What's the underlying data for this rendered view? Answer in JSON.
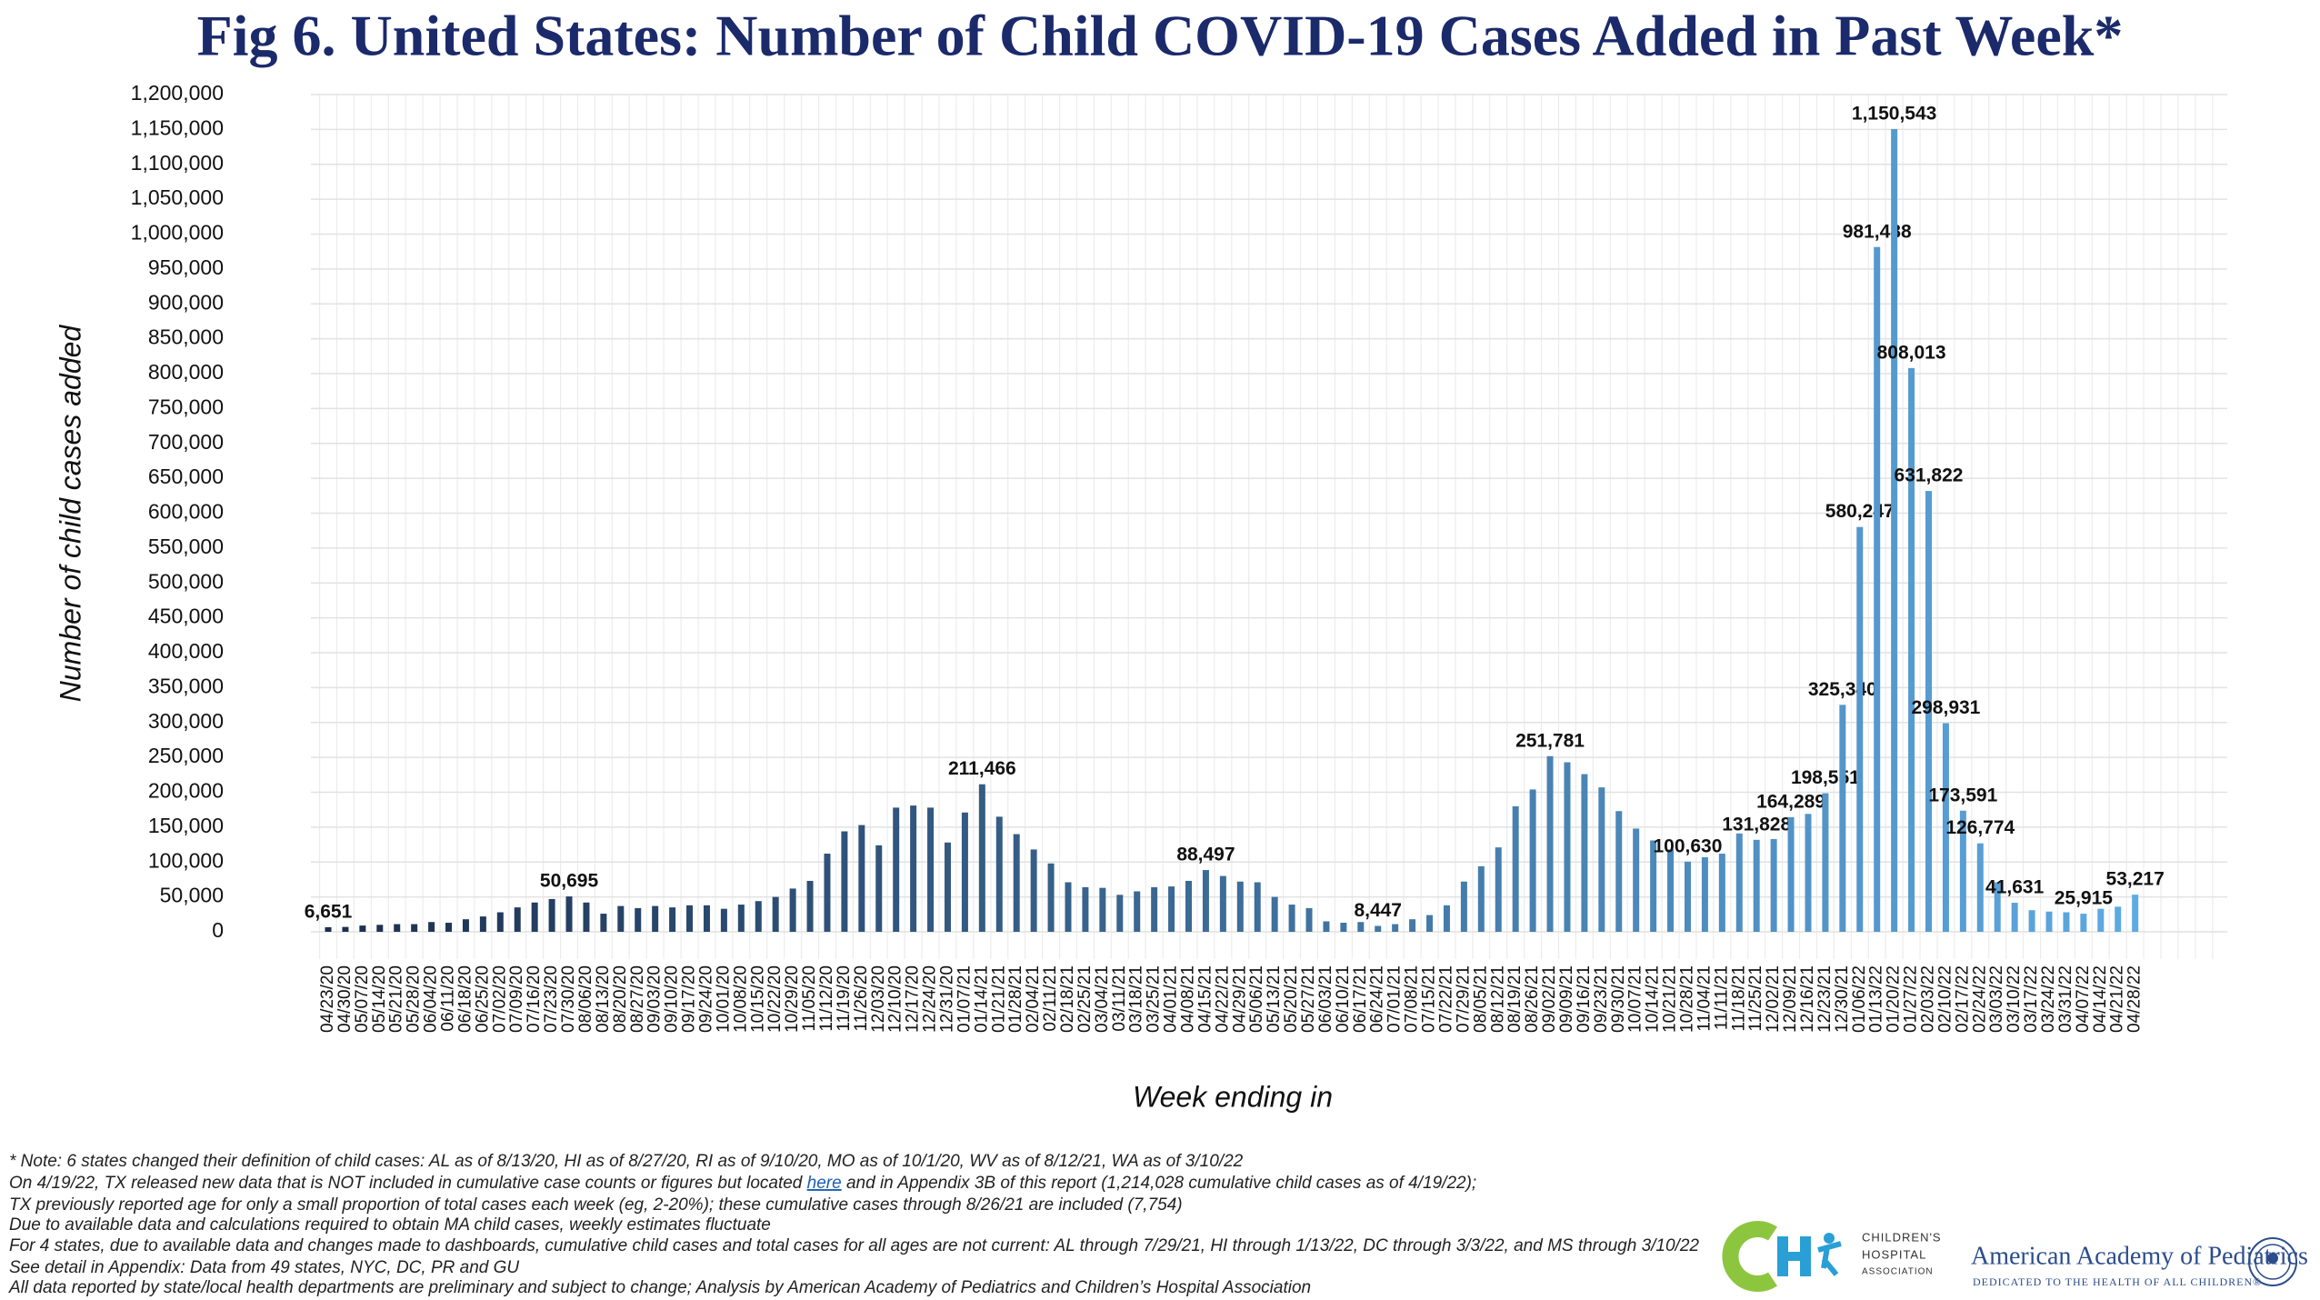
{
  "chart_data": {
    "type": "bar",
    "title": "Fig 6. United States: Number of Child COVID-19 Cases Added in Past Week*",
    "x_label": "Week ending in",
    "y_label": "Number of child cases added",
    "categories": [
      "04/23/20",
      "04/30/20",
      "05/07/20",
      "05/14/20",
      "05/21/20",
      "05/28/20",
      "06/04/20",
      "06/11/20",
      "06/18/20",
      "06/25/20",
      "07/02/20",
      "07/09/20",
      "07/16/20",
      "07/23/20",
      "07/30/20",
      "08/06/20",
      "08/13/20",
      "08/20/20",
      "08/27/20",
      "09/03/20",
      "09/10/20",
      "09/17/20",
      "09/24/20",
      "10/01/20",
      "10/08/20",
      "10/15/20",
      "10/22/20",
      "10/29/20",
      "11/05/20",
      "11/12/20",
      "11/19/20",
      "11/26/20",
      "12/03/20",
      "12/10/20",
      "12/17/20",
      "12/24/20",
      "12/31/20",
      "01/07/21",
      "01/14/21",
      "01/21/21",
      "01/28/21",
      "02/04/21",
      "02/11/21",
      "02/18/21",
      "02/25/21",
      "03/04/21",
      "03/11/21",
      "03/18/21",
      "03/25/21",
      "04/01/21",
      "04/08/21",
      "04/15/21",
      "04/22/21",
      "04/29/21",
      "05/06/21",
      "05/13/21",
      "05/20/21",
      "05/27/21",
      "06/03/21",
      "06/10/21",
      "06/17/21",
      "06/24/21",
      "07/01/21",
      "07/08/21",
      "07/15/21",
      "07/22/21",
      "07/29/21",
      "08/05/21",
      "08/12/21",
      "08/19/21",
      "08/26/21",
      "09/02/21",
      "09/09/21",
      "09/16/21",
      "09/23/21",
      "09/30/21",
      "10/07/21",
      "10/14/21",
      "10/21/21",
      "10/28/21",
      "11/04/21",
      "11/11/21",
      "11/18/21",
      "11/25/21",
      "12/02/21",
      "12/09/21",
      "12/16/21",
      "12/23/21",
      "12/30/21",
      "01/06/22",
      "01/13/22",
      "01/20/22",
      "01/27/22",
      "02/03/22",
      "02/10/22",
      "02/17/22",
      "02/24/22",
      "03/03/22",
      "03/10/22",
      "03/17/22",
      "03/24/22",
      "03/31/22",
      "04/07/22",
      "04/14/22",
      "04/21/22",
      "04/28/22"
    ],
    "values": [
      6651,
      7000,
      9000,
      10000,
      11000,
      11000,
      14000,
      13000,
      18000,
      22000,
      28000,
      35000,
      42000,
      47000,
      50695,
      42000,
      26000,
      37000,
      34000,
      37000,
      35000,
      38000,
      38000,
      33000,
      39000,
      44000,
      50000,
      62000,
      73000,
      112000,
      144000,
      153000,
      124000,
      178000,
      181000,
      178000,
      128000,
      171000,
      211466,
      165000,
      140000,
      118000,
      98000,
      71000,
      64000,
      63000,
      53000,
      58000,
      64000,
      65000,
      73000,
      88497,
      80000,
      72000,
      71000,
      50000,
      39000,
      34000,
      15000,
      13000,
      14000,
      8447,
      11000,
      18000,
      24000,
      38000,
      72000,
      94000,
      121000,
      180000,
      204000,
      251781,
      243000,
      226000,
      207000,
      173000,
      148000,
      131000,
      118000,
      100630,
      107000,
      112000,
      141000,
      131828,
      133000,
      164289,
      169000,
      198551,
      325340,
      580247,
      981488,
      1150543,
      808013,
      631822,
      298931,
      173591,
      126774,
      71000,
      41631,
      31000,
      29000,
      28000,
      25915,
      33000,
      36000,
      53217
    ],
    "value_labels": [
      "6,651",
      null,
      null,
      null,
      null,
      null,
      null,
      null,
      null,
      null,
      null,
      null,
      null,
      null,
      "50,695",
      null,
      null,
      null,
      null,
      null,
      null,
      null,
      null,
      null,
      null,
      null,
      null,
      null,
      null,
      null,
      null,
      null,
      null,
      null,
      null,
      null,
      null,
      null,
      "211,466",
      null,
      null,
      null,
      null,
      null,
      null,
      null,
      null,
      null,
      null,
      null,
      null,
      "88,497",
      null,
      null,
      null,
      null,
      null,
      null,
      null,
      null,
      null,
      "8,447",
      null,
      null,
      null,
      null,
      null,
      null,
      null,
      null,
      null,
      "251,781",
      null,
      null,
      null,
      null,
      null,
      null,
      null,
      "100,630",
      null,
      null,
      null,
      "131,828",
      null,
      "164,289",
      null,
      "198,551",
      "325,340",
      "580,247",
      "981,488",
      "1,150,543",
      "808,013",
      "631,822",
      "298,931",
      "173,591",
      "126,774",
      null,
      "41,631",
      null,
      null,
      null,
      "25,915",
      null,
      null,
      "53,217"
    ],
    "color_gradient": [
      "#1c2f4f",
      "#5eaae2"
    ],
    "ylim": [
      0,
      1200000
    ],
    "yticks": [
      0,
      {
        "value": 50000,
        "label": "50,000"
      },
      {
        "value": 100000,
        "label": "100,000"
      },
      {
        "value": 150000,
        "label": "150,000"
      },
      {
        "value": 200000,
        "label": "200,000"
      },
      {
        "value": 250000,
        "label": "250,000"
      },
      {
        "value": 300000,
        "label": "300,000"
      },
      {
        "value": 350000,
        "label": "350,000"
      },
      {
        "value": 400000,
        "label": "400,000"
      },
      {
        "value": 450000,
        "label": "450,000"
      },
      {
        "value": 500000,
        "label": "500,000"
      },
      {
        "value": 550000,
        "label": "550,000"
      },
      {
        "value": 600000,
        "label": "600,000"
      },
      {
        "value": 650000,
        "label": "650,000"
      },
      {
        "value": 700000,
        "label": "700,000"
      },
      {
        "value": 750000,
        "label": "750,000"
      },
      {
        "value": 800000,
        "label": "800,000"
      },
      {
        "value": 850000,
        "label": "850,000"
      },
      {
        "value": 900000,
        "label": "900,000"
      },
      {
        "value": 950000,
        "label": "950,000"
      },
      {
        "value": 1000000,
        "label": "1,000,000"
      },
      {
        "value": 1050000,
        "label": "1,050,000"
      },
      {
        "value": 1100000,
        "label": "1,100,000"
      },
      {
        "value": 1150000,
        "label": "1,150,000"
      },
      {
        "value": 1200000,
        "label": "1,200,000"
      }
    ],
    "grid": true
  },
  "notes": [
    "* Note: 6 states changed their definition of child cases: AL as of 8/13/20, HI as of 8/27/20, RI as of 9/10/20, MO as of 10/1/20, WV as of 8/12/21, WA as of 3/10/22",
    [
      "On 4/19/22, TX released new data that is NOT included in cumulative case counts or figures but located ",
      "here",
      " and in Appendix 3B of this report (1,214,028 cumulative child cases as of 4/19/22);"
    ],
    "TX previously reported age for only a small proportion of total cases each week (eg, 2-20%); these cumulative cases through 8/26/21 are included (7,754)",
    "Due to available data and calculations required to obtain MA child cases, weekly estimates fluctuate",
    "For 4 states, due to available data and changes made to dashboards, cumulative child cases and total cases for all ages are not current: AL through 7/29/21, HI through 1/13/22, DC through 3/3/22, and MS through 3/10/22",
    "See detail in Appendix: Data from 49 states, NYC, DC, PR and GU",
    "All data reported by state/local health departments are preliminary and subject to change; Analysis by American Academy of Pediatrics and Children’s Hospital Association"
  ],
  "logos": {
    "cha": [
      "CHILDREN'S",
      "HOSPITAL",
      "ASSOCIATION"
    ],
    "aap_name": "American Academy of Pediatrics",
    "aap_tagline": "DEDICATED TO THE HEALTH OF ALL CHILDREN®"
  }
}
